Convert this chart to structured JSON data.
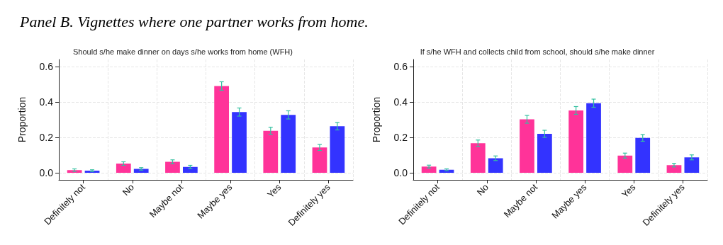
{
  "chart_data": [
    {
      "type": "bar",
      "title": "Should s/he make dinner on days s/he works from home (WFH)",
      "ylabel": "Proportion",
      "annotations": [
        "Panel B. Vignettes where one partner works from home."
      ],
      "categories": [
        "Definitely not",
        "No",
        "Maybe not",
        "Maybe yes",
        "Yes",
        "Definitely yes"
      ],
      "series": [
        {
          "color": "#ff3399",
          "values": [
            0.015,
            0.052,
            0.062,
            0.49,
            0.237,
            0.143
          ],
          "errors": [
            0.007,
            0.01,
            0.011,
            0.024,
            0.02,
            0.017
          ]
        },
        {
          "color": "#3333ff",
          "values": [
            0.012,
            0.022,
            0.033,
            0.343,
            0.327,
            0.263
          ],
          "errors": [
            0.005,
            0.007,
            0.009,
            0.023,
            0.023,
            0.021
          ]
        }
      ],
      "ylim": [
        -0.04,
        0.64
      ],
      "yticks": [
        {
          "value": 0,
          "label": "0.0"
        },
        {
          "value": 0.2,
          "label": "0.2"
        },
        {
          "value": 0.4,
          "label": "0.4"
        },
        {
          "value": 0.6,
          "label": "0.6"
        }
      ],
      "grid": true
    },
    {
      "type": "bar",
      "title": "If s/he WFH and collects child from school, should s/he make dinner",
      "ylabel": "Proportion",
      "categories": [
        "Definitely not",
        "No",
        "Maybe not",
        "Maybe yes",
        "Yes",
        "Definitely yes"
      ],
      "series": [
        {
          "color": "#ff3399",
          "values": [
            0.035,
            0.167,
            0.302,
            0.352,
            0.097,
            0.043
          ],
          "errors": [
            0.008,
            0.018,
            0.022,
            0.022,
            0.014,
            0.01
          ]
        },
        {
          "color": "#3333ff",
          "values": [
            0.017,
            0.082,
            0.22,
            0.393,
            0.197,
            0.087
          ],
          "errors": [
            0.005,
            0.013,
            0.02,
            0.023,
            0.019,
            0.014
          ]
        }
      ],
      "ylim": [
        -0.04,
        0.64
      ],
      "yticks": [
        {
          "value": 0,
          "label": "0.0"
        },
        {
          "value": 0.2,
          "label": "0.2"
        },
        {
          "value": 0.4,
          "label": "0.4"
        },
        {
          "value": 0.6,
          "label": "0.6"
        }
      ],
      "grid": true
    }
  ]
}
